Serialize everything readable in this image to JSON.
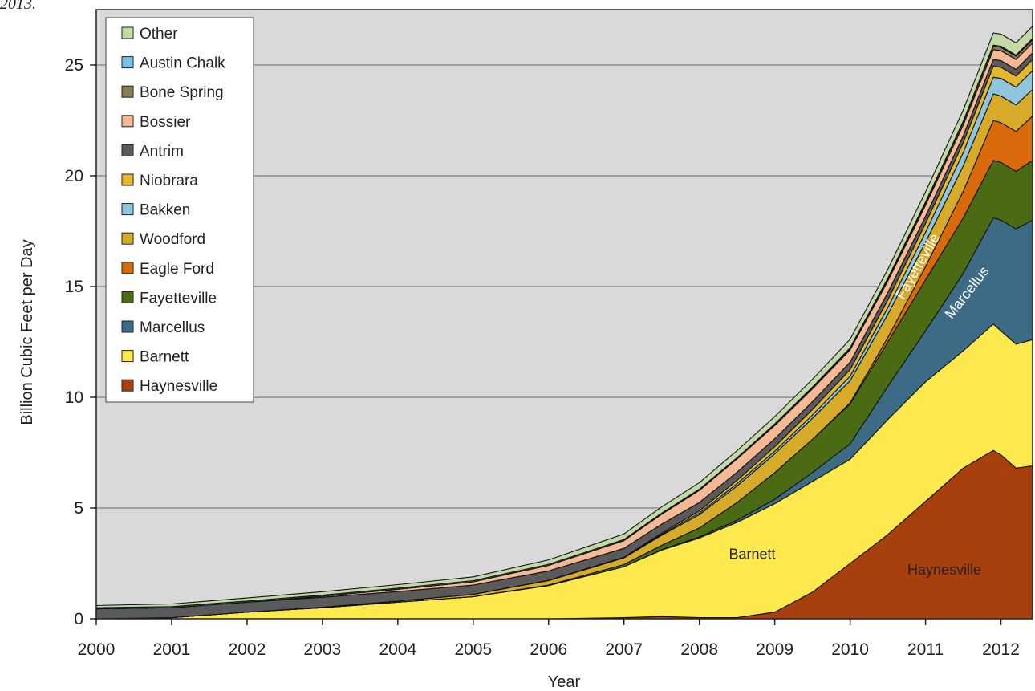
{
  "caption_fragment": "2013.",
  "chart_data": {
    "type": "area",
    "stacked": true,
    "xlabel": "Year",
    "ylabel": "Billion Cubic Feet per Day",
    "xlim": [
      2000,
      2012.42
    ],
    "ylim": [
      0,
      27.5
    ],
    "x_ticks": [
      2000,
      2001,
      2002,
      2003,
      2004,
      2005,
      2006,
      2007,
      2008,
      2009,
      2010,
      2011,
      2012
    ],
    "y_ticks": [
      0,
      5,
      10,
      15,
      20,
      25
    ],
    "grid": "horizontal",
    "legend_position": "top-left",
    "plot_background": "#d9d9d9",
    "x": [
      2000,
      2001,
      2002,
      2003,
      2004,
      2005,
      2006,
      2007,
      2007.5,
      2008,
      2008.5,
      2009,
      2009.5,
      2010,
      2010.5,
      2011,
      2011.5,
      2011.9,
      2012,
      2012.2,
      2012.42
    ],
    "series": [
      {
        "name": "Haynesville",
        "color": "#a8400d",
        "values": [
          0,
          0,
          0,
          0,
          0,
          0,
          0,
          0.05,
          0.1,
          0.05,
          0.05,
          0.3,
          1.2,
          2.5,
          3.8,
          5.3,
          6.8,
          7.6,
          7.4,
          6.8,
          6.9
        ]
      },
      {
        "name": "Barnett",
        "color": "#fde84d",
        "values": [
          0,
          0.05,
          0.3,
          0.5,
          0.75,
          1.0,
          1.5,
          2.3,
          3.0,
          3.6,
          4.3,
          4.9,
          5.0,
          4.7,
          5.2,
          5.4,
          5.3,
          5.7,
          5.6,
          5.6,
          5.7
        ]
      },
      {
        "name": "Marcellus",
        "color": "#3d6a85",
        "values": [
          0,
          0,
          0,
          0,
          0,
          0,
          0,
          0,
          0.02,
          0.05,
          0.1,
          0.2,
          0.4,
          0.7,
          1.5,
          2.3,
          3.5,
          4.8,
          5.0,
          5.2,
          5.4
        ]
      },
      {
        "name": "Fayetteville",
        "color": "#4a6b14",
        "values": [
          0,
          0,
          0,
          0,
          0,
          0,
          0.02,
          0.1,
          0.2,
          0.4,
          0.8,
          1.2,
          1.5,
          1.8,
          2.0,
          2.3,
          2.5,
          2.6,
          2.6,
          2.6,
          2.7
        ]
      },
      {
        "name": "Eagle Ford",
        "color": "#d96a0c",
        "values": [
          0,
          0,
          0,
          0,
          0,
          0,
          0,
          0,
          0,
          0,
          0,
          0,
          0,
          0.05,
          0.2,
          0.6,
          1.2,
          1.8,
          1.8,
          1.8,
          2.0
        ]
      },
      {
        "name": "Woodford",
        "color": "#d7ab2a",
        "values": [
          0,
          0,
          0,
          0.02,
          0.05,
          0.1,
          0.2,
          0.3,
          0.45,
          0.6,
          0.75,
          0.85,
          0.95,
          1.0,
          1.05,
          1.1,
          1.15,
          1.2,
          1.2,
          1.2,
          1.2
        ]
      },
      {
        "name": "Bakken",
        "color": "#8fc6dd",
        "values": [
          0,
          0,
          0,
          0,
          0,
          0,
          0.02,
          0.03,
          0.05,
          0.07,
          0.1,
          0.12,
          0.15,
          0.2,
          0.3,
          0.45,
          0.6,
          0.75,
          0.8,
          0.8,
          0.85
        ]
      },
      {
        "name": "Niobrara",
        "color": "#e3b72e",
        "values": [
          0,
          0,
          0,
          0,
          0,
          0,
          0,
          0,
          0.05,
          0.1,
          0.15,
          0.2,
          0.25,
          0.3,
          0.35,
          0.4,
          0.45,
          0.5,
          0.5,
          0.5,
          0.5
        ]
      },
      {
        "name": "Antrim",
        "color": "#5a5a5a",
        "values": [
          0.45,
          0.45,
          0.45,
          0.45,
          0.43,
          0.42,
          0.42,
          0.4,
          0.4,
          0.38,
          0.37,
          0.36,
          0.35,
          0.34,
          0.33,
          0.32,
          0.31,
          0.3,
          0.3,
          0.3,
          0.3
        ]
      },
      {
        "name": "Bossier",
        "color": "#f6b996",
        "values": [
          0,
          0,
          0,
          0.05,
          0.1,
          0.15,
          0.25,
          0.35,
          0.45,
          0.55,
          0.6,
          0.6,
          0.58,
          0.55,
          0.52,
          0.5,
          0.48,
          0.45,
          0.45,
          0.45,
          0.45
        ]
      },
      {
        "name": "Bone Spring",
        "color": "#8a7d55",
        "values": [
          0,
          0,
          0,
          0,
          0,
          0,
          0,
          0,
          0,
          0,
          0,
          0.02,
          0.03,
          0.05,
          0.08,
          0.1,
          0.13,
          0.15,
          0.15,
          0.15,
          0.15
        ]
      },
      {
        "name": "Austin Chalk",
        "color": "#79c0e6",
        "values": [
          0.05,
          0.05,
          0.05,
          0.05,
          0.05,
          0.05,
          0.05,
          0.05,
          0.05,
          0.05,
          0.05,
          0.05,
          0.05,
          0.05,
          0.05,
          0.05,
          0.05,
          0.05,
          0.05,
          0.05,
          0.05
        ]
      },
      {
        "name": "Other",
        "color": "#c3d9a6",
        "values": [
          0.1,
          0.12,
          0.14,
          0.15,
          0.16,
          0.17,
          0.2,
          0.25,
          0.28,
          0.3,
          0.32,
          0.33,
          0.35,
          0.38,
          0.4,
          0.45,
          0.5,
          0.55,
          0.55,
          0.55,
          0.55
        ]
      }
    ],
    "legend_order": [
      "Other",
      "Austin Chalk",
      "Bone Spring",
      "Bossier",
      "Antrim",
      "Niobrara",
      "Bakken",
      "Woodford",
      "Eagle Ford",
      "Fayetteville",
      "Marcellus",
      "Barnett",
      "Haynesville"
    ],
    "annotations": [
      {
        "text": "Barnett",
        "x": 2008.7,
        "y": 2.7,
        "color": "#222222",
        "rotation": 0
      },
      {
        "text": "Haynesville",
        "x": 2011.25,
        "y": 2.0,
        "color": "#222222",
        "rotation": 0
      },
      {
        "text": "Fayetteville",
        "x": 2010.95,
        "y": 15.8,
        "color": "#ffffff",
        "rotation": -60
      },
      {
        "text": "Marcellus",
        "x": 2011.6,
        "y": 14.6,
        "color": "#ffffff",
        "rotation": -52
      }
    ]
  }
}
